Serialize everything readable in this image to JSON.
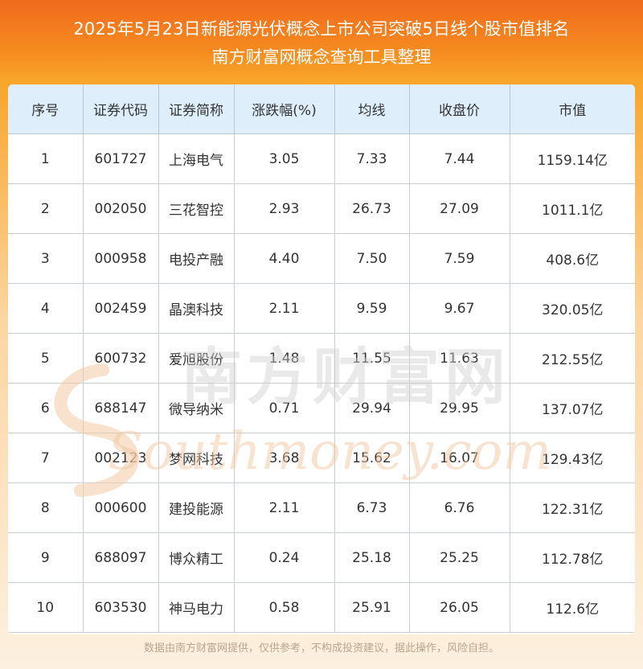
{
  "header": {
    "title_line1": "2025年5月23日新能源光伏概念上市公司突破5日线个股市值排名",
    "title_line2": "南方财富网概念查询工具整理"
  },
  "table": {
    "columns": [
      "序号",
      "证券代码",
      "证券简称",
      "涨跌幅(%)",
      "均线",
      "收盘价",
      "市值"
    ],
    "rows": [
      [
        "1",
        "601727",
        "上海电气",
        "3.05",
        "7.33",
        "7.44",
        "1159.14亿"
      ],
      [
        "2",
        "002050",
        "三花智控",
        "2.93",
        "26.73",
        "27.09",
        "1011.1亿"
      ],
      [
        "3",
        "000958",
        "电投产融",
        "4.40",
        "7.50",
        "7.59",
        "408.6亿"
      ],
      [
        "4",
        "002459",
        "晶澳科技",
        "2.11",
        "9.59",
        "9.67",
        "320.05亿"
      ],
      [
        "5",
        "600732",
        "爱旭股份",
        "1.48",
        "11.55",
        "11.63",
        "212.55亿"
      ],
      [
        "6",
        "688147",
        "微导纳米",
        "0.71",
        "29.94",
        "29.95",
        "137.07亿"
      ],
      [
        "7",
        "002123",
        "梦网科技",
        "3.68",
        "15.62",
        "16.07",
        "129.43亿"
      ],
      [
        "8",
        "000600",
        "建投能源",
        "2.11",
        "6.73",
        "6.76",
        "122.31亿"
      ],
      [
        "9",
        "688097",
        "博众精工",
        "0.24",
        "25.18",
        "25.25",
        "112.78亿"
      ],
      [
        "10",
        "603530",
        "神马电力",
        "0.58",
        "25.91",
        "26.05",
        "112.6亿"
      ]
    ]
  },
  "watermark": {
    "cn": "南方财富网",
    "en": "Southmoney.com"
  },
  "footer": {
    "disclaimer": "数据由南方财富网提供，仅供参考，不构成投资建议，据此操作，风险自担。"
  },
  "colors": {
    "header_gradient_top": "#f06a1e",
    "header_row_bg": "#dfeefb",
    "watermark": "#d8d8d8"
  }
}
